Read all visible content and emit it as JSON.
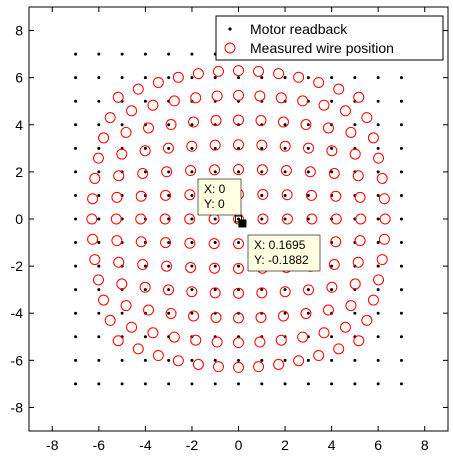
{
  "chart_data": {
    "type": "scatter",
    "xlim": [
      -9,
      9
    ],
    "ylim": [
      -9,
      9
    ],
    "xticks": [
      -8,
      -6,
      -4,
      -2,
      0,
      2,
      4,
      6,
      8
    ],
    "yticks": [
      -8,
      -6,
      -4,
      -2,
      0,
      2,
      4,
      6,
      8
    ],
    "xtick_labels": [
      "-8",
      "-6",
      "-4",
      "-2",
      "0",
      "2",
      "4",
      "6",
      "8"
    ],
    "ytick_labels": [
      "-8",
      "-6",
      "-4",
      "-2",
      "0",
      "2",
      "4",
      "6",
      "8"
    ],
    "grid": false,
    "legend_position": "top-right",
    "series": [
      {
        "name": "Motor readback",
        "marker": "dot",
        "color": "#000000",
        "grid_description": "15 x 15 regular grid, x and y from -7 to 7 in steps of 1",
        "x_range": [
          -7,
          7
        ],
        "y_range": [
          -7,
          7
        ],
        "step": 1
      },
      {
        "name": "Measured wire position",
        "marker": "circle",
        "color": "#ff0000",
        "grid_description": "13 x 13 grid spanning approximately -6.3 to 6.3, barrel-distorted (outer rows/columns bowed inward toward the center)",
        "count_per_axis": 13,
        "extent": 6.3,
        "distortion": 0.18
      }
    ],
    "datatips": [
      {
        "x_label": "X: 0",
        "y_label": "Y: 0",
        "x": 0,
        "y": 0
      },
      {
        "x_label": "X: 0.1695",
        "y_label": "Y: -0.1882",
        "x": 0.1695,
        "y": -0.1882
      }
    ]
  },
  "colors": {
    "axis": "#000000",
    "motor_marker": "#000000",
    "measured_marker": "#ff0000",
    "datatip_bg": "#ffffe1"
  }
}
